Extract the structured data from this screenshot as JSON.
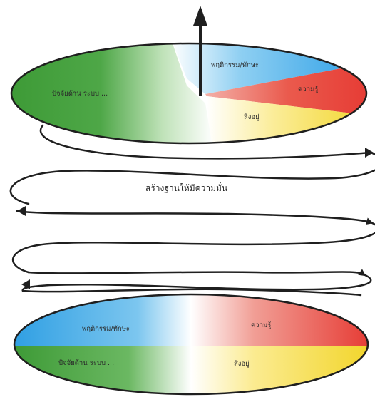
{
  "top_disc": {
    "label_green": "ปัจจัยด้าน ระบบ ...",
    "label_blue": "พฤติกรรม/ทักษะ",
    "label_red": "ความรู้",
    "label_yellow": "สิ่งอยู่"
  },
  "middle": {
    "label_center": "สร้างฐานให้มีความมั่น"
  },
  "bottom_disc": {
    "label_blue": "พฤติกรรม/ทักษะ",
    "label_red": "ความรู้",
    "label_green": "ปัจจัยด้าน ระบบ ...",
    "label_yellow": "สิ่งอยู่"
  },
  "colors": {
    "green": "#3f9b3a",
    "blue": "#39a9e8",
    "red": "#e8463c",
    "yellow": "#f3dc3a",
    "outline": "#1f1f1f"
  }
}
